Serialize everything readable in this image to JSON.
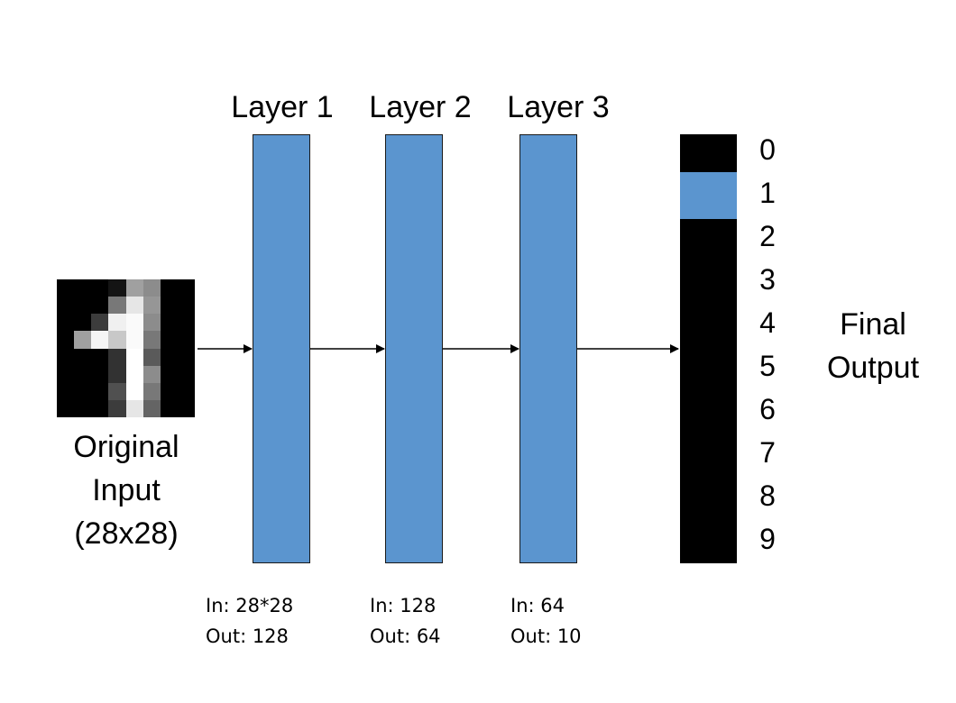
{
  "input": {
    "caption_lines": [
      "Original",
      "Input",
      "(28x28)"
    ],
    "image_grid": [
      [
        "#000000",
        "#000000",
        "#000000",
        "#141414",
        "#a0a0a0",
        "#8c8c8c",
        "#000000",
        "#000000"
      ],
      [
        "#000000",
        "#000000",
        "#000000",
        "#787878",
        "#e6e6e6",
        "#969696",
        "#000000",
        "#000000"
      ],
      [
        "#000000",
        "#000000",
        "#3c3c3c",
        "#f0f0f0",
        "#fafafa",
        "#8c8c8c",
        "#000000",
        "#000000"
      ],
      [
        "#000000",
        "#a0a0a0",
        "#f5f5f5",
        "#c8c8c8",
        "#fafafa",
        "#787878",
        "#000000",
        "#000000"
      ],
      [
        "#000000",
        "#000000",
        "#000000",
        "#323232",
        "#ffffff",
        "#5a5a5a",
        "#000000",
        "#000000"
      ],
      [
        "#000000",
        "#000000",
        "#000000",
        "#323232",
        "#ffffff",
        "#8c8c8c",
        "#000000",
        "#000000"
      ],
      [
        "#000000",
        "#000000",
        "#000000",
        "#505050",
        "#ffffff",
        "#787878",
        "#000000",
        "#000000"
      ],
      [
        "#000000",
        "#000000",
        "#000000",
        "#3c3c3c",
        "#e6e6e6",
        "#646464",
        "#000000",
        "#000000"
      ]
    ]
  },
  "layers": [
    {
      "title": "Layer 1",
      "in": "In: 28*28",
      "out": "Out: 128"
    },
    {
      "title": "Layer 2",
      "in": "In: 128",
      "out": "Out: 64"
    },
    {
      "title": "Layer 3",
      "in": "In: 64",
      "out": "Out: 10"
    }
  ],
  "output": {
    "digits": [
      "0",
      "1",
      "2",
      "3",
      "4",
      "5",
      "6",
      "7",
      "8",
      "9"
    ],
    "highlighted_digit": "1",
    "label_lines": [
      "Final",
      "Output"
    ]
  },
  "colors": {
    "layer_fill": "#5b95cf",
    "output_bar": "#000000",
    "highlight": "#5b95cf",
    "arrow": "#000000"
  }
}
